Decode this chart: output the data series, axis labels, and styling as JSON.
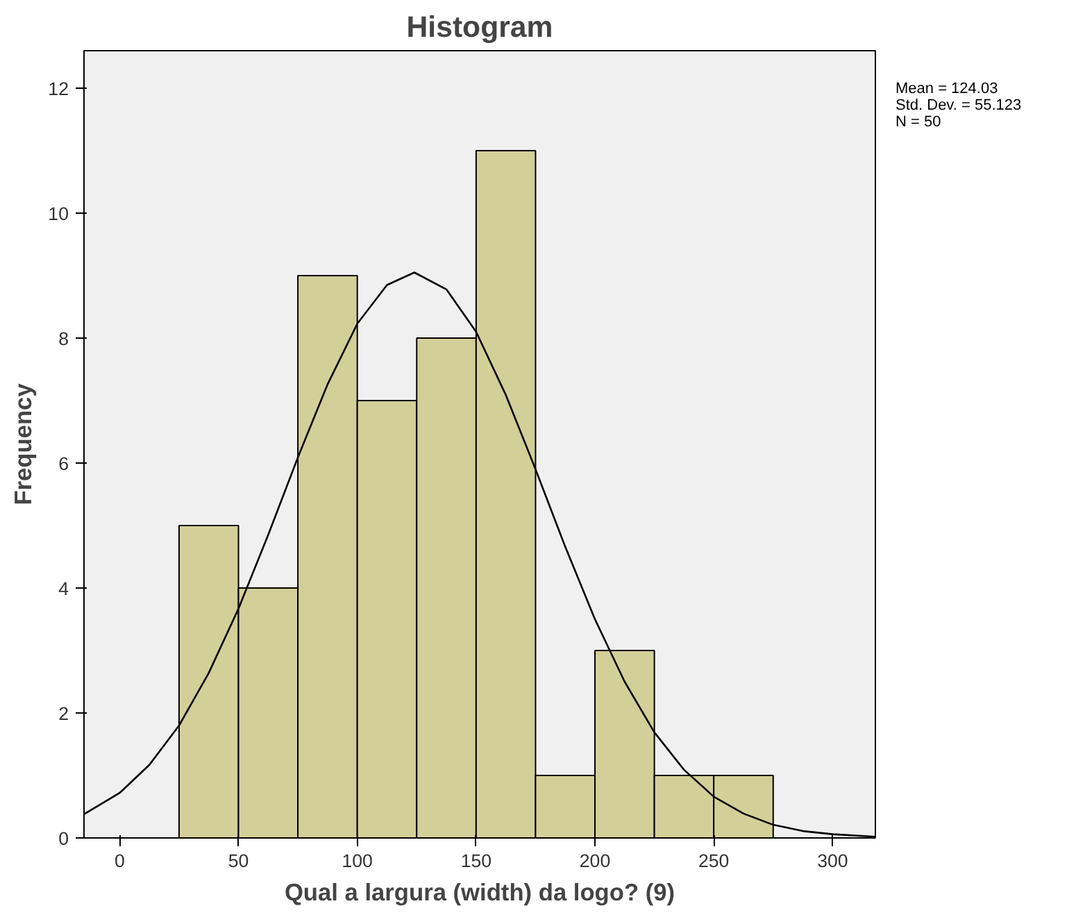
{
  "chart_data": {
    "type": "histogram",
    "title": "Histogram",
    "xlabel": "Qual a largura (width) da logo? (9)",
    "ylabel": "Frequency",
    "bins": [
      25,
      50,
      75,
      100,
      125,
      150,
      175,
      200,
      225,
      250,
      275
    ],
    "values": [
      5,
      4,
      9,
      7,
      8,
      11,
      1,
      3,
      1,
      1
    ],
    "color": "#d3cf98",
    "series": [
      {
        "type": "line",
        "color": "#000000",
        "x": [
          -15,
          0,
          12.5,
          25,
          37.5,
          50,
          62.5,
          75,
          87.5,
          100,
          112.5,
          124,
          137.5,
          150,
          162.5,
          175,
          187.5,
          200,
          212.5,
          225,
          237.5,
          250,
          262.5,
          275,
          287.5,
          300,
          318
        ],
        "values": [
          0.38,
          0.72,
          1.17,
          1.8,
          2.64,
          3.67,
          4.85,
          6.09,
          7.26,
          8.23,
          8.85,
          9.05,
          8.78,
          8.1,
          7.09,
          5.9,
          4.66,
          3.5,
          2.5,
          1.69,
          1.09,
          0.66,
          0.39,
          0.21,
          0.11,
          0.06,
          0.02
        ]
      }
    ],
    "xlim": [
      -15,
      318
    ],
    "ylim": [
      0,
      12.6
    ],
    "xticks": [
      0,
      50,
      100,
      150,
      200,
      250,
      300
    ],
    "yticks": [
      0,
      2,
      4,
      6,
      8,
      10,
      12
    ],
    "grid": false,
    "annotations": [
      "Mean = 124.03",
      "Std. Dev. = 55.123",
      "N = 50"
    ]
  }
}
